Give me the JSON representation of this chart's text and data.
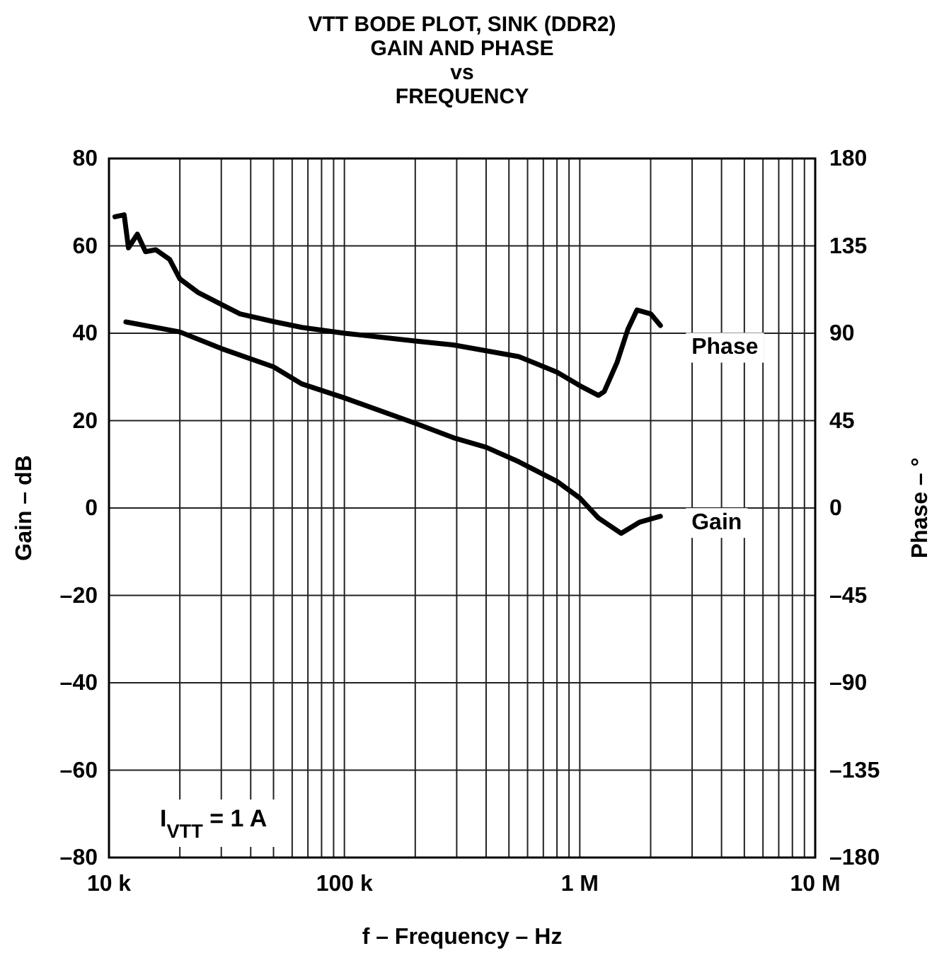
{
  "chart_data": {
    "type": "line",
    "title": "VTT BODE PLOT, SINK (DDR2)\nGAIN AND PHASE\nvs\nFREQUENCY",
    "xlabel": "f – Frequency – Hz",
    "ylabel": "Gain – dB",
    "y2label": "Phase – °",
    "annotations": [
      "I$_{VTT}$ = 1 A"
    ],
    "log": "x",
    "grid": true,
    "legend": false,
    "line_style": "solid",
    "marker": "none",
    "xlim": [
      10000,
      10000000
    ],
    "xticks": [
      {
        "value": 10000,
        "label": "10 k"
      },
      {
        "value": 20000,
        "label": null
      },
      {
        "value": 30000,
        "label": null
      },
      {
        "value": 40000,
        "label": null
      },
      {
        "value": 50000,
        "label": null
      },
      {
        "value": 60000,
        "label": null
      },
      {
        "value": 70000,
        "label": null
      },
      {
        "value": 80000,
        "label": null
      },
      {
        "value": 90000,
        "label": null
      },
      {
        "value": 100000,
        "label": "100 k"
      },
      {
        "value": 200000,
        "label": null
      },
      {
        "value": 300000,
        "label": null
      },
      {
        "value": 400000,
        "label": null
      },
      {
        "value": 500000,
        "label": null
      },
      {
        "value": 600000,
        "label": null
      },
      {
        "value": 700000,
        "label": null
      },
      {
        "value": 800000,
        "label": null
      },
      {
        "value": 900000,
        "label": null
      },
      {
        "value": 1000000,
        "label": "1 M"
      },
      {
        "value": 2000000,
        "label": null
      },
      {
        "value": 3000000,
        "label": null
      },
      {
        "value": 4000000,
        "label": null
      },
      {
        "value": 5000000,
        "label": null
      },
      {
        "value": 6000000,
        "label": null
      },
      {
        "value": 7000000,
        "label": null
      },
      {
        "value": 8000000,
        "label": null
      },
      {
        "value": 9000000,
        "label": null
      },
      {
        "value": 10000000,
        "label": "10 M"
      }
    ],
    "ylim": [
      -80,
      80
    ],
    "yticks": [
      {
        "value": -80,
        "label": "–80"
      },
      {
        "value": -60,
        "label": "–60"
      },
      {
        "value": -40,
        "label": "–40"
      },
      {
        "value": -20,
        "label": "–20"
      },
      0,
      20,
      40,
      60,
      80
    ],
    "y2lim": [
      -180,
      180
    ],
    "y2ticks": [
      {
        "value": -180,
        "label": "–180"
      },
      {
        "value": -135,
        "label": "–135"
      },
      {
        "value": -90,
        "label": "–90"
      },
      {
        "value": -45,
        "label": "–45"
      },
      0,
      45,
      90,
      135,
      180
    ],
    "series": [
      {
        "name": "Phase",
        "axis": "y2",
        "color": "#000000",
        "x": [
          10600,
          11600,
          12100,
          13200,
          14300,
          15800,
          18100,
          20000,
          23900,
          31000,
          36000,
          50000,
          66000,
          100000,
          200000,
          290000,
          400000,
          550000,
          800000,
          1000000,
          1200000,
          1270000,
          1440000,
          1600000,
          1750000,
          2000000,
          2200000
        ],
        "values": [
          150,
          151,
          134,
          141,
          132,
          133,
          128,
          118,
          111,
          104,
          100,
          96,
          93,
          90,
          86,
          84,
          81,
          78,
          70,
          63,
          58,
          60,
          75,
          92,
          102,
          100,
          94
        ]
      },
      {
        "name": "Gain",
        "color": "#000000",
        "x": [
          11800,
          20000,
          30000,
          50000,
          66000,
          100000,
          200000,
          290000,
          400000,
          550000,
          800000,
          1000000,
          1200000,
          1500000,
          1800000,
          2200000
        ],
        "values": [
          42.6,
          40.3,
          36.5,
          32.3,
          28.4,
          25.2,
          19.4,
          16.1,
          13.9,
          10.6,
          6.1,
          2.3,
          -2.3,
          -5.8,
          -3.2,
          -1.9
        ]
      }
    ]
  }
}
